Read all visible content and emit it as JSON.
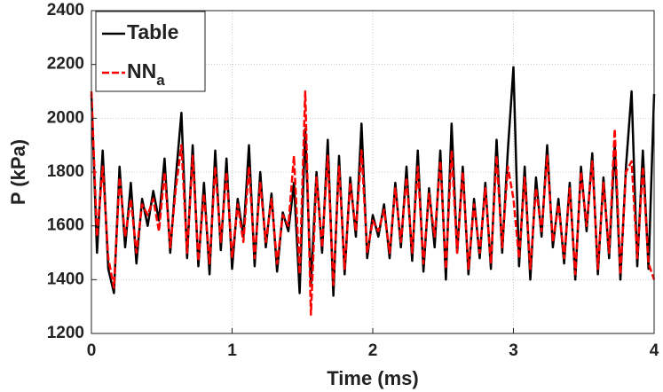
{
  "chart_data": {
    "type": "line",
    "xlabel": "Time (ms)",
    "ylabel": "P (kPa)",
    "x": [
      0,
      0.04,
      0.08,
      0.12,
      0.16,
      0.2,
      0.24,
      0.28,
      0.32,
      0.36,
      0.4,
      0.44,
      0.48,
      0.52,
      0.56,
      0.6,
      0.64,
      0.68,
      0.72,
      0.76,
      0.8,
      0.84,
      0.88,
      0.92,
      0.96,
      1,
      1.04,
      1.08,
      1.12,
      1.16,
      1.2,
      1.24,
      1.28,
      1.32,
      1.36,
      1.4,
      1.44,
      1.48,
      1.52,
      1.56,
      1.6,
      1.64,
      1.68,
      1.72,
      1.76,
      1.8,
      1.84,
      1.88,
      1.92,
      1.96,
      2,
      2.04,
      2.08,
      2.12,
      2.16,
      2.2,
      2.24,
      2.28,
      2.32,
      2.36,
      2.4,
      2.44,
      2.48,
      2.52,
      2.56,
      2.6,
      2.64,
      2.68,
      2.72,
      2.76,
      2.8,
      2.84,
      2.88,
      2.92,
      2.96,
      3,
      3.04,
      3.08,
      3.12,
      3.16,
      3.2,
      3.24,
      3.28,
      3.32,
      3.36,
      3.4,
      3.44,
      3.48,
      3.52,
      3.56,
      3.6,
      3.64,
      3.68,
      3.72,
      3.76,
      3.8,
      3.84,
      3.88,
      3.92,
      3.96,
      4
    ],
    "series": [
      {
        "name": "Table",
        "color": "#000000",
        "dash": false,
        "values": [
          2090,
          1500,
          1880,
          1440,
          1350,
          1820,
          1520,
          1760,
          1460,
          1700,
          1600,
          1730,
          1620,
          1850,
          1500,
          1780,
          2020,
          1480,
          1900,
          1450,
          1760,
          1420,
          1880,
          1510,
          1850,
          1440,
          1700,
          1560,
          1900,
          1450,
          1800,
          1520,
          1720,
          1430,
          1650,
          1580,
          1760,
          1350,
          1960,
          1380,
          1800,
          1500,
          1920,
          1340,
          1860,
          1420,
          1780,
          1560,
          1980,
          1480,
          1640,
          1560,
          1680,
          1480,
          1760,
          1520,
          1820,
          1470,
          1880,
          1430,
          1740,
          1520,
          1880,
          1400,
          1980,
          1500,
          1820,
          1420,
          1700,
          1480,
          1760,
          1440,
          1920,
          1500,
          1880,
          2190,
          1450,
          1820,
          1400,
          1780,
          1560,
          1900,
          1520,
          1700,
          1460,
          1760,
          1400,
          1820,
          1580,
          1870,
          1420,
          1780,
          1480,
          1900,
          1400,
          1820,
          2100,
          1450,
          1880,
          1440,
          2090
        ]
      },
      {
        "name": "NNa",
        "color": "#ff0000",
        "dash": true,
        "values": [
          2100,
          1560,
          1820,
          1480,
          1370,
          1780,
          1560,
          1700,
          1500,
          1680,
          1640,
          1700,
          1580,
          1800,
          1520,
          1740,
          1900,
          1500,
          1860,
          1470,
          1720,
          1460,
          1820,
          1540,
          1800,
          1480,
          1680,
          1540,
          1820,
          1480,
          1760,
          1540,
          1700,
          1460,
          1640,
          1600,
          1860,
          1420,
          2100,
          1270,
          1780,
          1520,
          1860,
          1380,
          1820,
          1440,
          1760,
          1580,
          1880,
          1500,
          1620,
          1580,
          1660,
          1500,
          1740,
          1540,
          1780,
          1500,
          1820,
          1460,
          1720,
          1560,
          1840,
          1440,
          1880,
          1500,
          1800,
          1440,
          1680,
          1500,
          1740,
          1460,
          1860,
          1520,
          1820,
          1700,
          1480,
          1780,
          1440,
          1740,
          1580,
          1860,
          1540,
          1680,
          1480,
          1740,
          1420,
          1800,
          1600,
          1840,
          1440,
          1760,
          1500,
          1960,
          1420,
          1800,
          1840,
          1480,
          1820,
          1460,
          1400
        ]
      }
    ],
    "xlim": [
      0,
      4
    ],
    "xticks": [
      0,
      1,
      2,
      3,
      4
    ],
    "ylim": [
      1200,
      2400
    ],
    "yticks": [
      1200,
      1400,
      1600,
      1800,
      2000,
      2200,
      2400
    ],
    "grid": true,
    "legend": "upper left"
  }
}
